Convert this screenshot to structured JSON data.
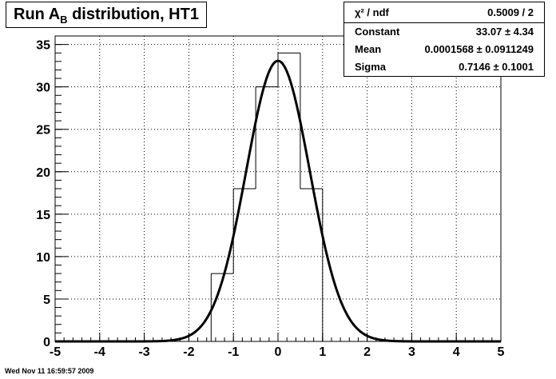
{
  "chart_data": {
    "type": "bar",
    "title_prefix": "Run A",
    "title_sub": "B",
    "title_suffix": " distribution, HT1",
    "x_ticks": [
      "-5",
      "-4",
      "-3",
      "-2",
      "-1",
      "0",
      "1",
      "2",
      "3",
      "4",
      "5"
    ],
    "y_ticks": [
      "0",
      "5",
      "10",
      "15",
      "20",
      "25",
      "30",
      "35"
    ],
    "xlim": [
      -5,
      5
    ],
    "ylim": [
      0,
      36
    ],
    "grid": true,
    "bin_edges": [
      -5,
      -4.5,
      -4,
      -3.5,
      -3,
      -2.5,
      -2,
      -1.5,
      -1,
      -0.5,
      0,
      0.5,
      1,
      1.5,
      2,
      2.5,
      3,
      3.5,
      4,
      4.5,
      5
    ],
    "bin_values": [
      0,
      0,
      0,
      0,
      0,
      0,
      0,
      8,
      18,
      30,
      34,
      18,
      0,
      0,
      0,
      0,
      0,
      0,
      0,
      0
    ],
    "fit": {
      "type": "gaussian",
      "constant": 33.07,
      "mean": 0.0001568,
      "sigma": 0.7146
    }
  },
  "stats": {
    "header": {
      "label": "χ² / ndf",
      "value": "0.5009 / 2"
    },
    "rows": [
      {
        "label": "Constant",
        "value": "33.07 ± 4.34"
      },
      {
        "label": "Mean",
        "value": "0.0001568 ± 0.0911249"
      },
      {
        "label": "Sigma",
        "value": "0.7146 ± 0.1001"
      }
    ]
  },
  "footer": "Wed Nov 11 16:59:57 2009"
}
